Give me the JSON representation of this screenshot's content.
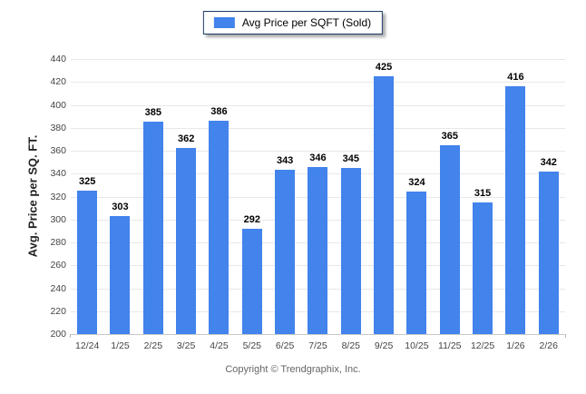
{
  "legend": {
    "label": "Avg Price per SQFT (Sold)"
  },
  "footer": {
    "copyright": "Copyright © Trendgraphix, Inc."
  },
  "colors": {
    "bar": "#4283ec",
    "legend_border": "#1c3a66",
    "gridline": "#e8e8e8",
    "axis_line": "#c9c9c9"
  },
  "chart_data": {
    "type": "bar",
    "title": "Avg Price per SQFT (Sold)",
    "categories": [
      "12/24",
      "1/25",
      "2/25",
      "3/25",
      "4/25",
      "5/25",
      "6/25",
      "7/25",
      "8/25",
      "9/25",
      "10/25",
      "11/25",
      "12/25",
      "1/26",
      "2/26"
    ],
    "values": [
      325,
      303,
      385,
      362,
      386,
      292,
      343,
      346,
      345,
      425,
      324,
      365,
      315,
      416,
      342
    ],
    "xlabel": "",
    "ylabel": "Avg. Price per SQ. FT.",
    "ylim": [
      200,
      440
    ],
    "ytick_step": 20,
    "grid": true,
    "legend_position": "top-center",
    "data_labels": true
  }
}
